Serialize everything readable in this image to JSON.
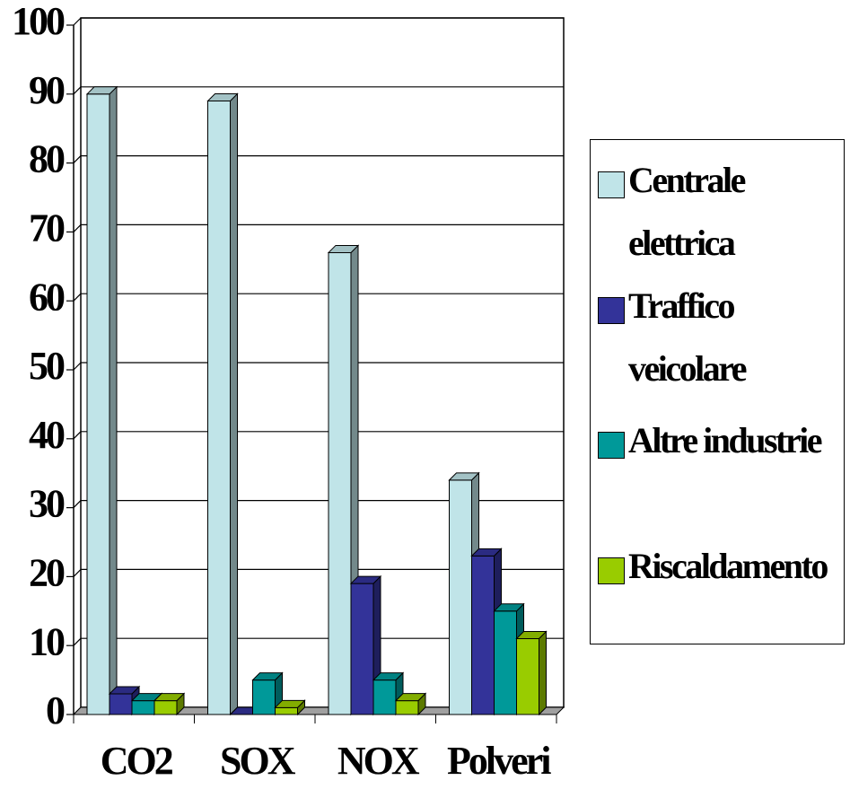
{
  "chart_data": {
    "type": "bar3d",
    "categories": [
      "CO2",
      "SOX",
      "NOX",
      "Polveri"
    ],
    "series": [
      {
        "name": "Centrale elettrica",
        "color": "#c0e4e8",
        "values": [
          90,
          89,
          67,
          34
        ]
      },
      {
        "name": "Traffico veicolare",
        "color": "#333399",
        "values": [
          3,
          0,
          19,
          23
        ]
      },
      {
        "name": "Altre industrie",
        "color": "#009999",
        "values": [
          2,
          5,
          5,
          15
        ]
      },
      {
        "name": "Riscaldamento",
        "color": "#99cc00",
        "values": [
          2,
          1,
          2,
          11
        ]
      }
    ],
    "ylim": [
      0,
      100
    ],
    "yticks": [
      0,
      10,
      20,
      30,
      40,
      50,
      60,
      70,
      80,
      90,
      100
    ],
    "grid": true,
    "legend": "right"
  }
}
